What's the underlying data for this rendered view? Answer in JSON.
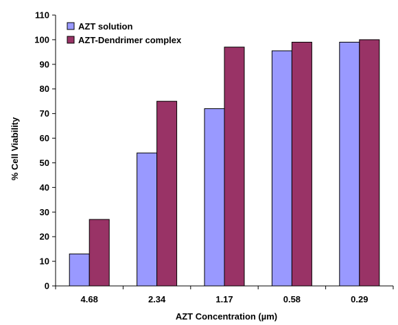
{
  "chart_data": {
    "type": "bar",
    "title": "",
    "xlabel": "AZT Concentration (µm)",
    "ylabel": "% Cell Viability",
    "categories": [
      "4.68",
      "2.34",
      "1.17",
      "0.58",
      "0.29"
    ],
    "series": [
      {
        "name": "AZT solution",
        "values": [
          13,
          54,
          72,
          95.5,
          99
        ],
        "color": "#9999ff"
      },
      {
        "name": "AZT-Dendrimer complex",
        "values": [
          27,
          75,
          97,
          99,
          100
        ],
        "color": "#993366"
      }
    ],
    "ylim": [
      0,
      110
    ],
    "yticks": [
      0,
      10,
      20,
      30,
      40,
      50,
      60,
      70,
      80,
      90,
      100,
      110
    ],
    "grid": false,
    "legend_position": "top-left"
  }
}
